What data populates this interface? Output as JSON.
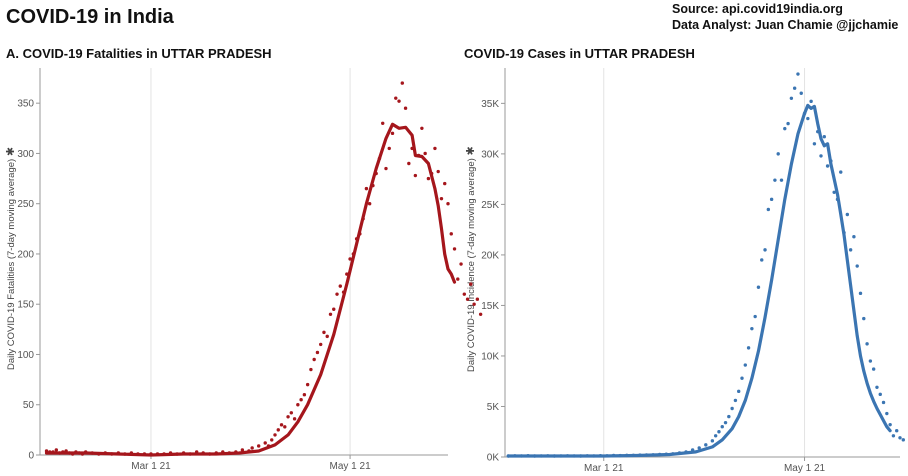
{
  "title": "COVID-19 in India",
  "source_line": "Source: api.covid19india.org",
  "analyst_line": "Data Analyst:  Juan Chamie @jjchamie",
  "chart_data": [
    {
      "type": "line",
      "title": "A. COVID-19 Fatalities in UTTAR PRADESH",
      "ylabel": "Daily COVID-19 Fatalities (7-day moving average)",
      "ylabel_icon": "asterisk-icon",
      "x_ticks": [
        "Mar 1 21",
        "May 1 21"
      ],
      "y_ticks": [
        "0",
        "50",
        "100",
        "150",
        "200",
        "250",
        "300",
        "350"
      ],
      "x_range_days": [
        -34,
        91
      ],
      "ylim": [
        0,
        385
      ],
      "grid": "vertical",
      "color": "#a5161c",
      "series": [
        {
          "values": [
            [
              -32,
              2
            ],
            [
              -26,
              2
            ],
            [
              -20,
              2
            ],
            [
              -10,
              1
            ],
            [
              0,
              0
            ],
            [
              10,
              1
            ],
            [
              20,
              1
            ],
            [
              27,
              2
            ],
            [
              33,
              4
            ],
            [
              38,
              10
            ],
            [
              42,
              20
            ],
            [
              45,
              33
            ],
            [
              48,
              50
            ],
            [
              52,
              80
            ],
            [
              56,
              120
            ],
            [
              60,
              170
            ],
            [
              63,
              210
            ],
            [
              66,
              250
            ],
            [
              69,
              285
            ],
            [
              72,
              315
            ],
            [
              74,
              329
            ],
            [
              76,
              325
            ],
            [
              78,
              326
            ],
            [
              80,
              318
            ],
            [
              81,
              298
            ],
            [
              83,
              297
            ],
            [
              85,
              290
            ],
            [
              87,
              265
            ],
            [
              88,
              248
            ],
            [
              89,
              225
            ],
            [
              90,
              200
            ],
            [
              91,
              185
            ],
            [
              92,
              180
            ],
            [
              93,
              172
            ]
          ]
        }
      ],
      "points": [
        [
          -32,
          4
        ],
        [
          -31,
          3
        ],
        [
          -30,
          3
        ],
        [
          -29,
          5
        ],
        [
          -28,
          2
        ],
        [
          -27,
          3
        ],
        [
          -26,
          4
        ],
        [
          -25,
          2
        ],
        [
          -24,
          1
        ],
        [
          -23,
          3
        ],
        [
          -22,
          2
        ],
        [
          -21,
          1
        ],
        [
          -20,
          3
        ],
        [
          -18,
          2
        ],
        [
          -16,
          1
        ],
        [
          -14,
          2
        ],
        [
          -12,
          1
        ],
        [
          -10,
          2
        ],
        [
          -8,
          1
        ],
        [
          -6,
          2
        ],
        [
          -4,
          1
        ],
        [
          -2,
          1
        ],
        [
          0,
          1
        ],
        [
          2,
          1
        ],
        [
          4,
          1
        ],
        [
          6,
          2
        ],
        [
          8,
          1
        ],
        [
          10,
          2
        ],
        [
          12,
          1
        ],
        [
          14,
          3
        ],
        [
          16,
          2
        ],
        [
          18,
          1
        ],
        [
          20,
          2
        ],
        [
          22,
          3
        ],
        [
          24,
          2
        ],
        [
          26,
          3
        ],
        [
          28,
          5
        ],
        [
          30,
          4
        ],
        [
          31,
          7
        ],
        [
          33,
          9
        ],
        [
          35,
          12
        ],
        [
          36,
          9
        ],
        [
          37,
          15
        ],
        [
          38,
          20
        ],
        [
          39,
          25
        ],
        [
          40,
          30
        ],
        [
          41,
          28
        ],
        [
          42,
          38
        ],
        [
          43,
          42
        ],
        [
          44,
          36
        ],
        [
          45,
          50
        ],
        [
          46,
          55
        ],
        [
          47,
          60
        ],
        [
          48,
          70
        ],
        [
          49,
          85
        ],
        [
          50,
          95
        ],
        [
          51,
          102
        ],
        [
          52,
          110
        ],
        [
          53,
          122
        ],
        [
          54,
          118
        ],
        [
          55,
          140
        ],
        [
          56,
          145
        ],
        [
          57,
          160
        ],
        [
          58,
          168
        ],
        [
          59,
          162
        ],
        [
          60,
          180
        ],
        [
          61,
          195
        ],
        [
          62,
          200
        ],
        [
          63,
          215
        ],
        [
          64,
          220
        ],
        [
          65,
          235
        ],
        [
          66,
          265
        ],
        [
          67,
          250
        ],
        [
          68,
          268
        ],
        [
          69,
          280
        ],
        [
          70,
          295
        ],
        [
          71,
          330
        ],
        [
          72,
          285
        ],
        [
          73,
          305
        ],
        [
          74,
          320
        ],
        [
          75,
          355
        ],
        [
          76,
          352
        ],
        [
          77,
          370
        ],
        [
          78,
          345
        ],
        [
          79,
          290
        ],
        [
          80,
          305
        ],
        [
          81,
          278
        ],
        [
          82,
          298
        ],
        [
          83,
          325
        ],
        [
          84,
          300
        ],
        [
          85,
          275
        ],
        [
          86,
          280
        ],
        [
          87,
          305
        ],
        [
          88,
          282
        ],
        [
          89,
          255
        ],
        [
          90,
          270
        ],
        [
          91,
          250
        ],
        [
          92,
          220
        ],
        [
          93,
          205
        ],
        [
          94,
          175
        ],
        [
          95,
          190
        ],
        [
          96,
          160
        ],
        [
          97,
          155
        ],
        [
          98,
          170
        ],
        [
          99,
          150
        ],
        [
          100,
          155
        ],
        [
          101,
          140
        ]
      ]
    },
    {
      "type": "line",
      "title": "COVID-19 Cases in UTTAR PRADESH",
      "ylabel": "Daily COVID-19 Incidence (7-day moving average)",
      "ylabel_icon": "asterisk-icon",
      "x_ticks": [
        "Mar 1 21",
        "May 1 21"
      ],
      "y_ticks": [
        "0K",
        "5K",
        "10K",
        "15K",
        "20K",
        "25K",
        "30K",
        "35K"
      ],
      "x_range_days": [
        -30,
        90
      ],
      "ylim": [
        0,
        38500
      ],
      "grid": "vertical",
      "color": "#3b75b2",
      "series": [
        {
          "values": [
            [
              -29,
              100
            ],
            [
              -20,
              100
            ],
            [
              -10,
              100
            ],
            [
              0,
              100
            ],
            [
              10,
              150
            ],
            [
              20,
              250
            ],
            [
              28,
              500
            ],
            [
              33,
              1000
            ],
            [
              36,
              1700
            ],
            [
              39,
              2800
            ],
            [
              41,
              4000
            ],
            [
              43,
              5600
            ],
            [
              45,
              7800
            ],
            [
              47,
              10500
            ],
            [
              49,
              13800
            ],
            [
              51,
              17500
            ],
            [
              53,
              21500
            ],
            [
              55,
              25500
            ],
            [
              57,
              29000
            ],
            [
              59,
              32000
            ],
            [
              61,
              34000
            ],
            [
              62,
              34800
            ],
            [
              63,
              34500
            ],
            [
              64,
              34700
            ],
            [
              65,
              33000
            ],
            [
              66,
              31500
            ],
            [
              67,
              30800
            ],
            [
              68,
              31000
            ],
            [
              69,
              29000
            ],
            [
              70,
              27500
            ],
            [
              71,
              26000
            ],
            [
              72,
              24000
            ],
            [
              73,
              22000
            ],
            [
              74,
              19500
            ],
            [
              75,
              17000
            ],
            [
              76,
              14500
            ],
            [
              77,
              12000
            ],
            [
              78,
              10000
            ],
            [
              79,
              8500
            ],
            [
              80,
              7300
            ],
            [
              81,
              6300
            ],
            [
              82,
              5500
            ],
            [
              83,
              4800
            ],
            [
              84,
              4200
            ],
            [
              85,
              3600
            ],
            [
              86,
              3000
            ],
            [
              87,
              2600
            ]
          ]
        }
      ],
      "points": [
        [
          -29,
          100
        ],
        [
          -27,
          120
        ],
        [
          -25,
          110
        ],
        [
          -23,
          130
        ],
        [
          -21,
          100
        ],
        [
          -19,
          110
        ],
        [
          -17,
          120
        ],
        [
          -15,
          100
        ],
        [
          -13,
          110
        ],
        [
          -11,
          120
        ],
        [
          -9,
          110
        ],
        [
          -7,
          100
        ],
        [
          -5,
          120
        ],
        [
          -3,
          110
        ],
        [
          -1,
          130
        ],
        [
          1,
          120
        ],
        [
          3,
          150
        ],
        [
          5,
          140
        ],
        [
          7,
          160
        ],
        [
          9,
          170
        ],
        [
          11,
          190
        ],
        [
          13,
          200
        ],
        [
          15,
          220
        ],
        [
          17,
          250
        ],
        [
          19,
          280
        ],
        [
          21,
          320
        ],
        [
          23,
          400
        ],
        [
          25,
          500
        ],
        [
          27,
          700
        ],
        [
          29,
          900
        ],
        [
          31,
          1200
        ],
        [
          33,
          1600
        ],
        [
          34,
          2100
        ],
        [
          35,
          2500
        ],
        [
          36,
          3000
        ],
        [
          37,
          3400
        ],
        [
          38,
          4000
        ],
        [
          39,
          4800
        ],
        [
          40,
          5600
        ],
        [
          41,
          6500
        ],
        [
          42,
          7800
        ],
        [
          43,
          9100
        ],
        [
          44,
          10800
        ],
        [
          45,
          12700
        ],
        [
          46,
          13900
        ],
        [
          47,
          16800
        ],
        [
          48,
          19500
        ],
        [
          49,
          20500
        ],
        [
          50,
          24500
        ],
        [
          51,
          25500
        ],
        [
          52,
          27400
        ],
        [
          53,
          30000
        ],
        [
          54,
          27400
        ],
        [
          55,
          32500
        ],
        [
          56,
          33000
        ],
        [
          57,
          35500
        ],
        [
          58,
          36500
        ],
        [
          59,
          37900
        ],
        [
          60,
          36000
        ],
        [
          61,
          34000
        ],
        [
          62,
          33500
        ],
        [
          63,
          35200
        ],
        [
          64,
          31000
        ],
        [
          65,
          32200
        ],
        [
          66,
          29800
        ],
        [
          67,
          31700
        ],
        [
          68,
          28800
        ],
        [
          69,
          29300
        ],
        [
          70,
          26200
        ],
        [
          71,
          25500
        ],
        [
          72,
          28200
        ],
        [
          73,
          22200
        ],
        [
          74,
          24000
        ],
        [
          75,
          20500
        ],
        [
          76,
          21800
        ],
        [
          77,
          18900
        ],
        [
          78,
          16200
        ],
        [
          79,
          13700
        ],
        [
          80,
          11200
        ],
        [
          81,
          9500
        ],
        [
          82,
          8700
        ],
        [
          83,
          6900
        ],
        [
          84,
          6200
        ],
        [
          85,
          5400
        ],
        [
          86,
          4300
        ],
        [
          87,
          3200
        ],
        [
          88,
          2100
        ],
        [
          89,
          2600
        ],
        [
          90,
          1900
        ],
        [
          91,
          1700
        ]
      ]
    }
  ]
}
